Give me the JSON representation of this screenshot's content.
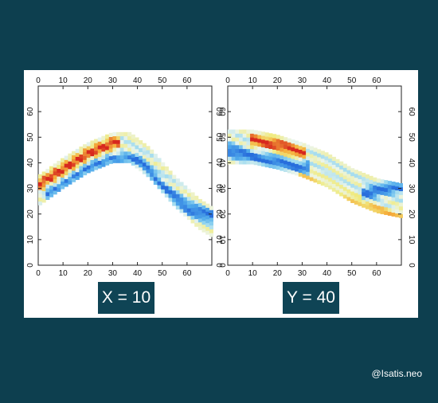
{
  "watermark": "@Isatis.neo",
  "colors": {
    "background": "#0d3f4f",
    "label_bg": "#0f4455",
    "card": "#ffffff"
  },
  "chart_data": [
    {
      "type": "heatmap",
      "label": "X = 10",
      "title": "",
      "xlabel": "",
      "ylabel": "",
      "xlim": [
        0,
        70
      ],
      "ylim": [
        0,
        70
      ],
      "xticks": [
        0,
        10,
        20,
        30,
        40,
        50,
        60
      ],
      "yticks": [
        0,
        10,
        20,
        30,
        40,
        50,
        60
      ],
      "grid": false,
      "colorscale": "jet-like (blue low, white/yellow mid, red high)",
      "band": {
        "x_range": [
          0,
          70
        ],
        "centerline": [
          [
            0,
            29
          ],
          [
            10,
            36
          ],
          [
            20,
            42
          ],
          [
            30,
            46
          ],
          [
            37,
            46
          ],
          [
            45,
            40
          ],
          [
            55,
            29
          ],
          [
            65,
            20
          ],
          [
            70,
            17
          ]
        ],
        "width": 12,
        "features": [
          {
            "type": "high",
            "points": [
              [
                0,
                32
              ],
              [
                10,
                38
              ],
              [
                20,
                44
              ],
              [
                30,
                48
              ]
            ]
          },
          {
            "type": "low",
            "points": [
              [
                5,
                28
              ],
              [
                20,
                38
              ],
              [
                30,
                41
              ],
              [
                40,
                41
              ],
              [
                50,
                30
              ],
              [
                60,
                22
              ],
              [
                70,
                19
              ]
            ]
          }
        ]
      }
    },
    {
      "type": "heatmap",
      "label": "Y = 40",
      "title": "",
      "xlabel": "",
      "ylabel": "",
      "xlim": [
        0,
        70
      ],
      "ylim": [
        0,
        70
      ],
      "xticks": [
        0,
        10,
        20,
        30,
        40,
        50,
        60
      ],
      "yticks": [
        0,
        10,
        20,
        30,
        40,
        50,
        60
      ],
      "grid": false,
      "colorscale": "jet-like (blue low, white/yellow mid, red high)",
      "band": {
        "x_range": [
          0,
          70
        ],
        "centerline": [
          [
            0,
            46
          ],
          [
            10,
            46
          ],
          [
            20,
            44
          ],
          [
            30,
            41
          ],
          [
            40,
            37
          ],
          [
            50,
            31
          ],
          [
            60,
            27
          ],
          [
            70,
            25
          ]
        ],
        "width": 13,
        "features": [
          {
            "type": "high",
            "points": [
              [
                10,
                49
              ],
              [
                20,
                47
              ],
              [
                28,
                44
              ]
            ]
          },
          {
            "type": "high",
            "points": [
              [
                30,
                34
              ],
              [
                45,
                26
              ],
              [
                60,
                20
              ],
              [
                68,
                18
              ]
            ]
          },
          {
            "type": "low",
            "points": [
              [
                0,
                45
              ],
              [
                10,
                42
              ],
              [
                20,
                40
              ],
              [
                30,
                38
              ]
            ]
          },
          {
            "type": "low",
            "points": [
              [
                55,
                28
              ],
              [
                62,
                30
              ],
              [
                70,
                31
              ]
            ]
          }
        ]
      }
    }
  ]
}
